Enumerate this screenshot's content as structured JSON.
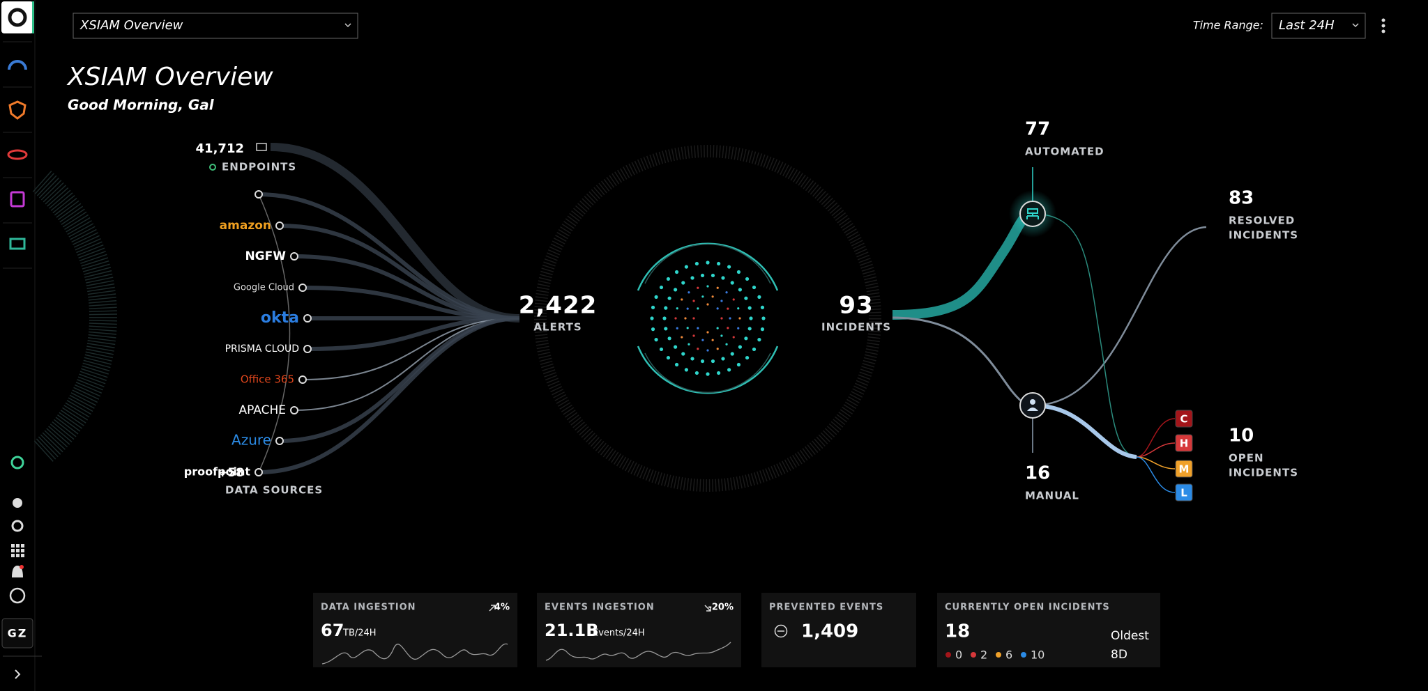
{
  "header": {
    "dashboard_select": "XSIAM Overview",
    "time_range_label": "Time Range:",
    "time_range": "Last 24H"
  },
  "title": "XSIAM Overview",
  "greeting": "Good Morning, Gal",
  "sources": {
    "endpoints": {
      "value": "41,712",
      "label": "ENDPOINTS"
    },
    "list": [
      "amazon",
      "NGFW",
      "Google Cloud",
      "okta",
      "PRISMA CLOUD",
      "Office 365",
      "APACHE",
      "Azure",
      "proofpoint"
    ],
    "more": {
      "value": "+58",
      "label": "DATA SOURCES"
    }
  },
  "alerts": {
    "value": "2,422",
    "label": "ALERTS"
  },
  "incidents": {
    "value": "93",
    "label": "INCIDENTS"
  },
  "automated": {
    "value": "77",
    "label": "AUTOMATED"
  },
  "manual": {
    "value": "16",
    "label": "MANUAL"
  },
  "resolved": {
    "value": "83",
    "label_1": "RESOLVED",
    "label_2": "INCIDENTS"
  },
  "open": {
    "value": "10",
    "label_1": "OPEN",
    "label_2": "INCIDENTS",
    "severities": [
      "C",
      "H",
      "M",
      "L"
    ]
  },
  "cards": {
    "data_ingestion": {
      "title": "DATA INGESTION",
      "change": "4%",
      "value": "67",
      "unit": "TB/24H"
    },
    "events_ingestion": {
      "title": "EVENTS INGESTION",
      "change": "-20%",
      "value": "21.1B",
      "unit": "Events/24H"
    },
    "prevented_events": {
      "title": "PREVENTED EVENTS",
      "value": "1,409"
    },
    "open_incidents": {
      "title": "CURRENTLY OPEN INCIDENTS",
      "value": "18",
      "counts": [
        "0",
        "2",
        "6",
        "10"
      ],
      "oldest_label": "Oldest",
      "oldest": "8D"
    }
  },
  "user": "GZ"
}
